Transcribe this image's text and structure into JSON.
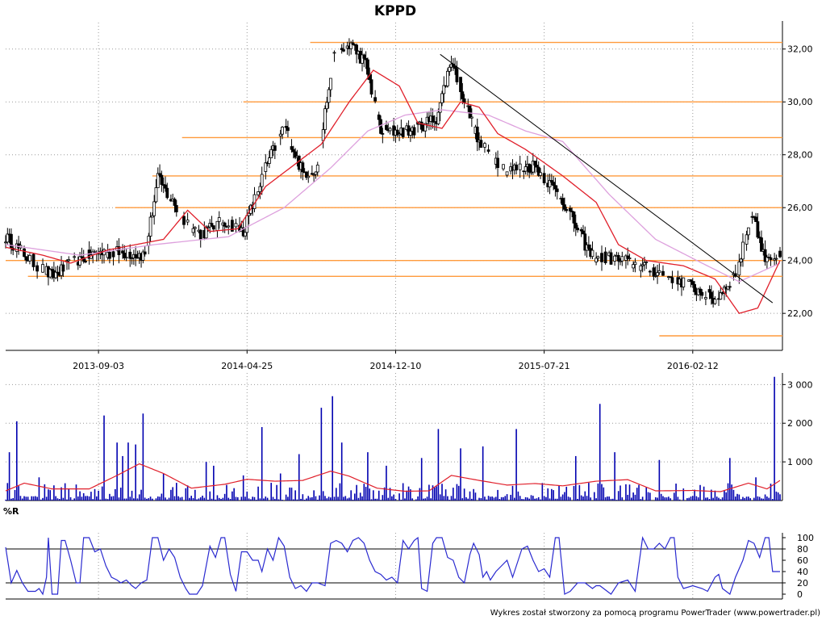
{
  "title": "KPPD",
  "footer": "Wykres został stworzony za pomocą programu PowerTrader (www.powertrader.pl)",
  "colors": {
    "candle": "#000000",
    "ma_fast": "#e01f2a",
    "ma_slow": "#dda0dd",
    "level": "#ff9a3c",
    "trend": "#000000",
    "volume": "#0000b0",
    "volume_ma": "#e01f2a",
    "wr": "#2a2ad0"
  },
  "chart_data": [
    {
      "type": "candlestick",
      "name": "price",
      "x_ticks": [
        "2013-09-03",
        "2014-04-25",
        "2014-12-10",
        "2015-07-21",
        "2016-02-12"
      ],
      "x_tick_index": [
        50,
        130,
        210,
        290,
        370
      ],
      "n_bars": 418,
      "ylim": [
        20.6,
        33.0
      ],
      "y_ticks": [
        22,
        24,
        26,
        28,
        30,
        32
      ],
      "y_tick_labels": [
        "22,00",
        "24,00",
        "26,00",
        "28,00",
        "30,00",
        "32,00"
      ],
      "grid": true,
      "close_anchors": [
        [
          0,
          24.9
        ],
        [
          12,
          24.1
        ],
        [
          25,
          23.4
        ],
        [
          38,
          24.0
        ],
        [
          50,
          24.3
        ],
        [
          65,
          24.3
        ],
        [
          75,
          24.2
        ],
        [
          82,
          27.1
        ],
        [
          95,
          25.6
        ],
        [
          105,
          25.0
        ],
        [
          118,
          25.5
        ],
        [
          128,
          25.1
        ],
        [
          140,
          27.5
        ],
        [
          150,
          29.1
        ],
        [
          160,
          27.3
        ],
        [
          168,
          27.5
        ],
        [
          176,
          31.6
        ],
        [
          186,
          32.2
        ],
        [
          194,
          31.4
        ],
        [
          202,
          28.9
        ],
        [
          218,
          28.9
        ],
        [
          232,
          29.4
        ],
        [
          240,
          31.6
        ],
        [
          255,
          28.4
        ],
        [
          270,
          27.4
        ],
        [
          285,
          27.6
        ],
        [
          300,
          26.3
        ],
        [
          315,
          24.2
        ],
        [
          332,
          24.0
        ],
        [
          350,
          23.6
        ],
        [
          362,
          23.3
        ],
        [
          372,
          22.9
        ],
        [
          382,
          22.5
        ],
        [
          394,
          23.6
        ],
        [
          402,
          25.9
        ],
        [
          408,
          24.2
        ],
        [
          417,
          24.1
        ]
      ],
      "ma_fast_anchors": [
        [
          0,
          24.5
        ],
        [
          20,
          24.2
        ],
        [
          35,
          23.9
        ],
        [
          55,
          24.4
        ],
        [
          70,
          24.6
        ],
        [
          85,
          24.8
        ],
        [
          98,
          25.9
        ],
        [
          110,
          25.1
        ],
        [
          125,
          25.2
        ],
        [
          140,
          26.8
        ],
        [
          155,
          27.6
        ],
        [
          170,
          28.4
        ],
        [
          185,
          30.0
        ],
        [
          198,
          31.2
        ],
        [
          212,
          30.6
        ],
        [
          222,
          29.2
        ],
        [
          235,
          29.0
        ],
        [
          245,
          30.0
        ],
        [
          255,
          29.8
        ],
        [
          265,
          28.8
        ],
        [
          280,
          28.2
        ],
        [
          300,
          27.2
        ],
        [
          318,
          26.2
        ],
        [
          330,
          24.6
        ],
        [
          345,
          24.0
        ],
        [
          365,
          23.8
        ],
        [
          382,
          23.3
        ],
        [
          395,
          22.0
        ],
        [
          405,
          22.2
        ],
        [
          417,
          24.0
        ]
      ],
      "ma_slow_anchors": [
        [
          0,
          24.6
        ],
        [
          40,
          24.2
        ],
        [
          80,
          24.6
        ],
        [
          120,
          24.9
        ],
        [
          150,
          26.0
        ],
        [
          175,
          27.5
        ],
        [
          195,
          28.9
        ],
        [
          215,
          29.5
        ],
        [
          235,
          29.7
        ],
        [
          260,
          29.5
        ],
        [
          280,
          28.9
        ],
        [
          300,
          28.5
        ],
        [
          325,
          26.5
        ],
        [
          350,
          24.8
        ],
        [
          375,
          23.9
        ],
        [
          395,
          23.2
        ],
        [
          417,
          23.9
        ]
      ],
      "horizontal_levels": [
        {
          "value": 32.25,
          "from": 164,
          "to": 417
        },
        {
          "value": 30.0,
          "from": 128,
          "to": 417
        },
        {
          "value": 28.65,
          "from": 95,
          "to": 417
        },
        {
          "value": 27.2,
          "from": 79,
          "to": 417
        },
        {
          "value": 26.0,
          "from": 59,
          "to": 417
        },
        {
          "value": 24.0,
          "from": 0,
          "to": 417
        },
        {
          "value": 23.4,
          "from": 12,
          "to": 417
        },
        {
          "value": 21.15,
          "from": 352,
          "to": 417
        }
      ],
      "trendline": {
        "from": [
          234,
          31.8
        ],
        "to": [
          413,
          22.4
        ]
      }
    },
    {
      "type": "bar",
      "name": "volume",
      "ylim": [
        0,
        3300
      ],
      "y_ticks": [
        1000,
        2000,
        3000
      ],
      "y_tick_labels": [
        "1 000",
        "2 000",
        "3 000"
      ],
      "spikes": [
        [
          2,
          1250
        ],
        [
          6,
          2050
        ],
        [
          18,
          600
        ],
        [
          53,
          2200
        ],
        [
          60,
          1500
        ],
        [
          63,
          1150
        ],
        [
          66,
          1500
        ],
        [
          70,
          1450
        ],
        [
          74,
          2250
        ],
        [
          85,
          700
        ],
        [
          108,
          1000
        ],
        [
          112,
          900
        ],
        [
          128,
          650
        ],
        [
          138,
          1900
        ],
        [
          148,
          700
        ],
        [
          158,
          1200
        ],
        [
          170,
          2400
        ],
        [
          176,
          2700
        ],
        [
          181,
          1500
        ],
        [
          195,
          1250
        ],
        [
          205,
          900
        ],
        [
          224,
          1100
        ],
        [
          233,
          1850
        ],
        [
          245,
          1350
        ],
        [
          257,
          1400
        ],
        [
          275,
          1850
        ],
        [
          307,
          1150
        ],
        [
          320,
          2500
        ],
        [
          328,
          1250
        ],
        [
          352,
          1050
        ],
        [
          390,
          1100
        ],
        [
          404,
          600
        ],
        [
          414,
          3200
        ]
      ],
      "volume_ma_anchors": [
        [
          0,
          250
        ],
        [
          10,
          450
        ],
        [
          25,
          300
        ],
        [
          45,
          300
        ],
        [
          60,
          650
        ],
        [
          72,
          950
        ],
        [
          85,
          700
        ],
        [
          100,
          320
        ],
        [
          118,
          420
        ],
        [
          130,
          550
        ],
        [
          145,
          500
        ],
        [
          160,
          520
        ],
        [
          175,
          760
        ],
        [
          185,
          630
        ],
        [
          200,
          320
        ],
        [
          215,
          240
        ],
        [
          228,
          250
        ],
        [
          240,
          650
        ],
        [
          255,
          520
        ],
        [
          270,
          400
        ],
        [
          285,
          440
        ],
        [
          300,
          380
        ],
        [
          318,
          500
        ],
        [
          335,
          540
        ],
        [
          350,
          250
        ],
        [
          370,
          260
        ],
        [
          385,
          230
        ],
        [
          400,
          450
        ],
        [
          410,
          300
        ],
        [
          417,
          520
        ]
      ]
    },
    {
      "type": "line",
      "name": "%R",
      "label": "%R",
      "ylim": [
        0,
        100
      ],
      "y_ticks": [
        0,
        20,
        40,
        60,
        80,
        100
      ],
      "y_tick_labels": [
        "0",
        "20",
        "40",
        "60",
        "80",
        "100"
      ],
      "reference_lines": [
        20,
        80
      ],
      "anchors": [
        [
          0,
          83
        ],
        [
          3,
          20
        ],
        [
          6,
          42
        ],
        [
          9,
          20
        ],
        [
          12,
          5
        ],
        [
          16,
          5
        ],
        [
          18,
          10
        ],
        [
          20,
          0
        ],
        [
          22,
          30
        ],
        [
          23,
          100
        ],
        [
          25,
          0
        ],
        [
          28,
          0
        ],
        [
          30,
          95
        ],
        [
          32,
          95
        ],
        [
          35,
          60
        ],
        [
          38,
          20
        ],
        [
          40,
          20
        ],
        [
          42,
          100
        ],
        [
          45,
          100
        ],
        [
          48,
          75
        ],
        [
          51,
          80
        ],
        [
          54,
          50
        ],
        [
          57,
          30
        ],
        [
          60,
          25
        ],
        [
          62,
          20
        ],
        [
          65,
          25
        ],
        [
          68,
          15
        ],
        [
          70,
          10
        ],
        [
          73,
          20
        ],
        [
          76,
          25
        ],
        [
          79,
          100
        ],
        [
          82,
          100
        ],
        [
          85,
          60
        ],
        [
          88,
          80
        ],
        [
          91,
          65
        ],
        [
          94,
          30
        ],
        [
          97,
          10
        ],
        [
          99,
          0
        ],
        [
          103,
          0
        ],
        [
          106,
          15
        ],
        [
          110,
          85
        ],
        [
          113,
          65
        ],
        [
          116,
          100
        ],
        [
          118,
          100
        ],
        [
          121,
          35
        ],
        [
          124,
          5
        ],
        [
          127,
          75
        ],
        [
          130,
          75
        ],
        [
          133,
          60
        ],
        [
          136,
          60
        ],
        [
          138,
          40
        ],
        [
          141,
          80
        ],
        [
          144,
          60
        ],
        [
          147,
          100
        ],
        [
          150,
          85
        ],
        [
          153,
          30
        ],
        [
          156,
          10
        ],
        [
          159,
          15
        ],
        [
          162,
          5
        ],
        [
          165,
          20
        ],
        [
          168,
          20
        ],
        [
          172,
          15
        ],
        [
          175,
          90
        ],
        [
          178,
          95
        ],
        [
          181,
          90
        ],
        [
          184,
          75
        ],
        [
          187,
          95
        ],
        [
          190,
          100
        ],
        [
          193,
          90
        ],
        [
          196,
          60
        ],
        [
          199,
          40
        ],
        [
          202,
          35
        ],
        [
          205,
          25
        ],
        [
          208,
          30
        ],
        [
          211,
          20
        ],
        [
          214,
          95
        ],
        [
          217,
          80
        ],
        [
          220,
          95
        ],
        [
          222,
          100
        ],
        [
          224,
          10
        ],
        [
          227,
          5
        ],
        [
          230,
          90
        ],
        [
          232,
          100
        ],
        [
          235,
          100
        ],
        [
          238,
          65
        ],
        [
          241,
          60
        ],
        [
          244,
          30
        ],
        [
          247,
          20
        ],
        [
          250,
          70
        ],
        [
          252,
          90
        ],
        [
          255,
          70
        ],
        [
          257,
          30
        ],
        [
          259,
          40
        ],
        [
          261,
          25
        ],
        [
          264,
          40
        ],
        [
          267,
          50
        ],
        [
          270,
          60
        ],
        [
          273,
          30
        ],
        [
          276,
          60
        ],
        [
          278,
          80
        ],
        [
          281,
          85
        ],
        [
          284,
          60
        ],
        [
          287,
          40
        ],
        [
          290,
          45
        ],
        [
          293,
          30
        ],
        [
          296,
          100
        ],
        [
          298,
          100
        ],
        [
          301,
          0
        ],
        [
          304,
          5
        ],
        [
          308,
          20
        ],
        [
          312,
          20
        ],
        [
          316,
          10
        ],
        [
          318,
          15
        ],
        [
          320,
          15
        ],
        [
          322,
          10
        ],
        [
          326,
          0
        ],
        [
          330,
          20
        ],
        [
          335,
          25
        ],
        [
          339,
          5
        ],
        [
          343,
          100
        ],
        [
          346,
          80
        ],
        [
          349,
          80
        ],
        [
          352,
          90
        ],
        [
          355,
          80
        ],
        [
          358,
          100
        ],
        [
          360,
          100
        ],
        [
          362,
          30
        ],
        [
          365,
          10
        ],
        [
          370,
          15
        ],
        [
          375,
          10
        ],
        [
          378,
          5
        ],
        [
          382,
          30
        ],
        [
          384,
          35
        ],
        [
          386,
          10
        ],
        [
          390,
          0
        ],
        [
          393,
          30
        ],
        [
          397,
          60
        ],
        [
          400,
          95
        ],
        [
          403,
          90
        ],
        [
          406,
          65
        ],
        [
          409,
          100
        ],
        [
          411,
          100
        ],
        [
          413,
          40
        ],
        [
          417,
          40
        ]
      ]
    }
  ]
}
